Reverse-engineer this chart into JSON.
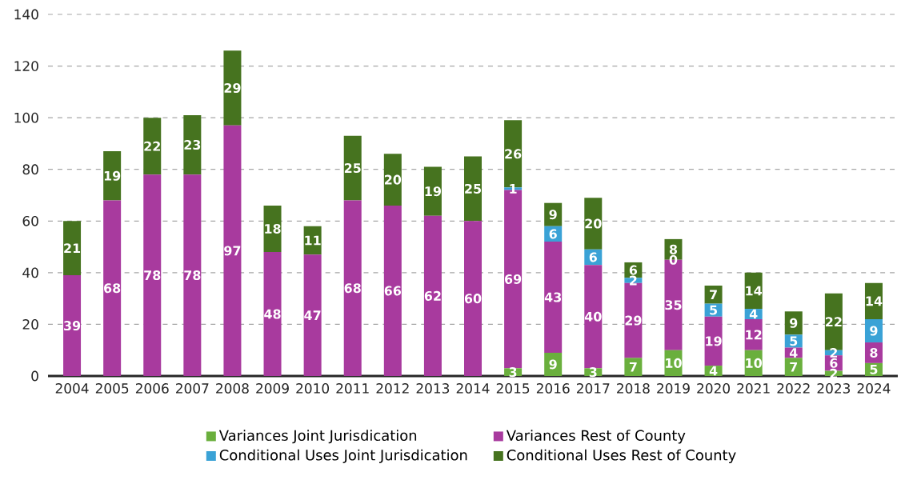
{
  "chart_data": {
    "type": "bar",
    "stacked": true,
    "grid": "y",
    "legend": "bottom",
    "categories": [
      "2004",
      "2005",
      "2006",
      "2007",
      "2008",
      "2009",
      "2010",
      "2011",
      "2012",
      "2013",
      "2014",
      "2015",
      "2016",
      "2017",
      "2018",
      "2019",
      "2020",
      "2021",
      "2022",
      "2023",
      "2024"
    ],
    "ylim": [
      0,
      140
    ],
    "yticks": [
      0,
      20,
      40,
      60,
      80,
      100,
      120,
      140
    ],
    "series": [
      {
        "name": "Variances Joint Jurisdication",
        "color": "#6aaf3d",
        "values": [
          0,
          0,
          0,
          0,
          0,
          0,
          0,
          0,
          0,
          0,
          0,
          3,
          9,
          3,
          7,
          10,
          4,
          10,
          7,
          2,
          5
        ],
        "value_labels": [
          null,
          null,
          null,
          null,
          null,
          null,
          null,
          null,
          null,
          null,
          null,
          "3",
          "9",
          "3",
          "7",
          "10",
          "4",
          "10",
          "7",
          "2",
          "5"
        ]
      },
      {
        "name": "Variances Rest of County",
        "color": "#a83a9e",
        "values": [
          39,
          68,
          78,
          78,
          97,
          48,
          47,
          68,
          66,
          62,
          60,
          69,
          43,
          40,
          29,
          35,
          19,
          12,
          4,
          6,
          8
        ],
        "value_labels": [
          "39",
          "68",
          "78",
          "78",
          "97",
          "48",
          "47",
          "68",
          "66",
          "62",
          "60",
          "69",
          "43",
          "40",
          "29",
          "35",
          "19",
          "12",
          "4",
          "6",
          "8"
        ]
      },
      {
        "name": "Conditional Uses Joint Jurisdication",
        "color": "#3aa2d6",
        "values": [
          0,
          0,
          0,
          0,
          0,
          0,
          0,
          0,
          0,
          0,
          0,
          1,
          6,
          6,
          2,
          0,
          5,
          4,
          5,
          2,
          9
        ],
        "value_labels": [
          null,
          null,
          null,
          null,
          null,
          null,
          null,
          null,
          null,
          null,
          null,
          "1",
          "6",
          "6",
          "2",
          "0",
          "5",
          "4",
          "5",
          "2",
          "9"
        ]
      },
      {
        "name": "Conditional Uses Rest of County",
        "color": "#46731f",
        "values": [
          21,
          19,
          22,
          23,
          29,
          18,
          11,
          25,
          20,
          19,
          25,
          26,
          9,
          20,
          6,
          8,
          7,
          14,
          9,
          22,
          14
        ],
        "value_labels": [
          "21",
          "19",
          "22",
          "23",
          "29",
          "18",
          "11",
          "25",
          "20",
          "19",
          "25",
          "26",
          "9",
          "20",
          "6",
          "8",
          "7",
          "14",
          "9",
          "22",
          "14"
        ]
      }
    ]
  }
}
